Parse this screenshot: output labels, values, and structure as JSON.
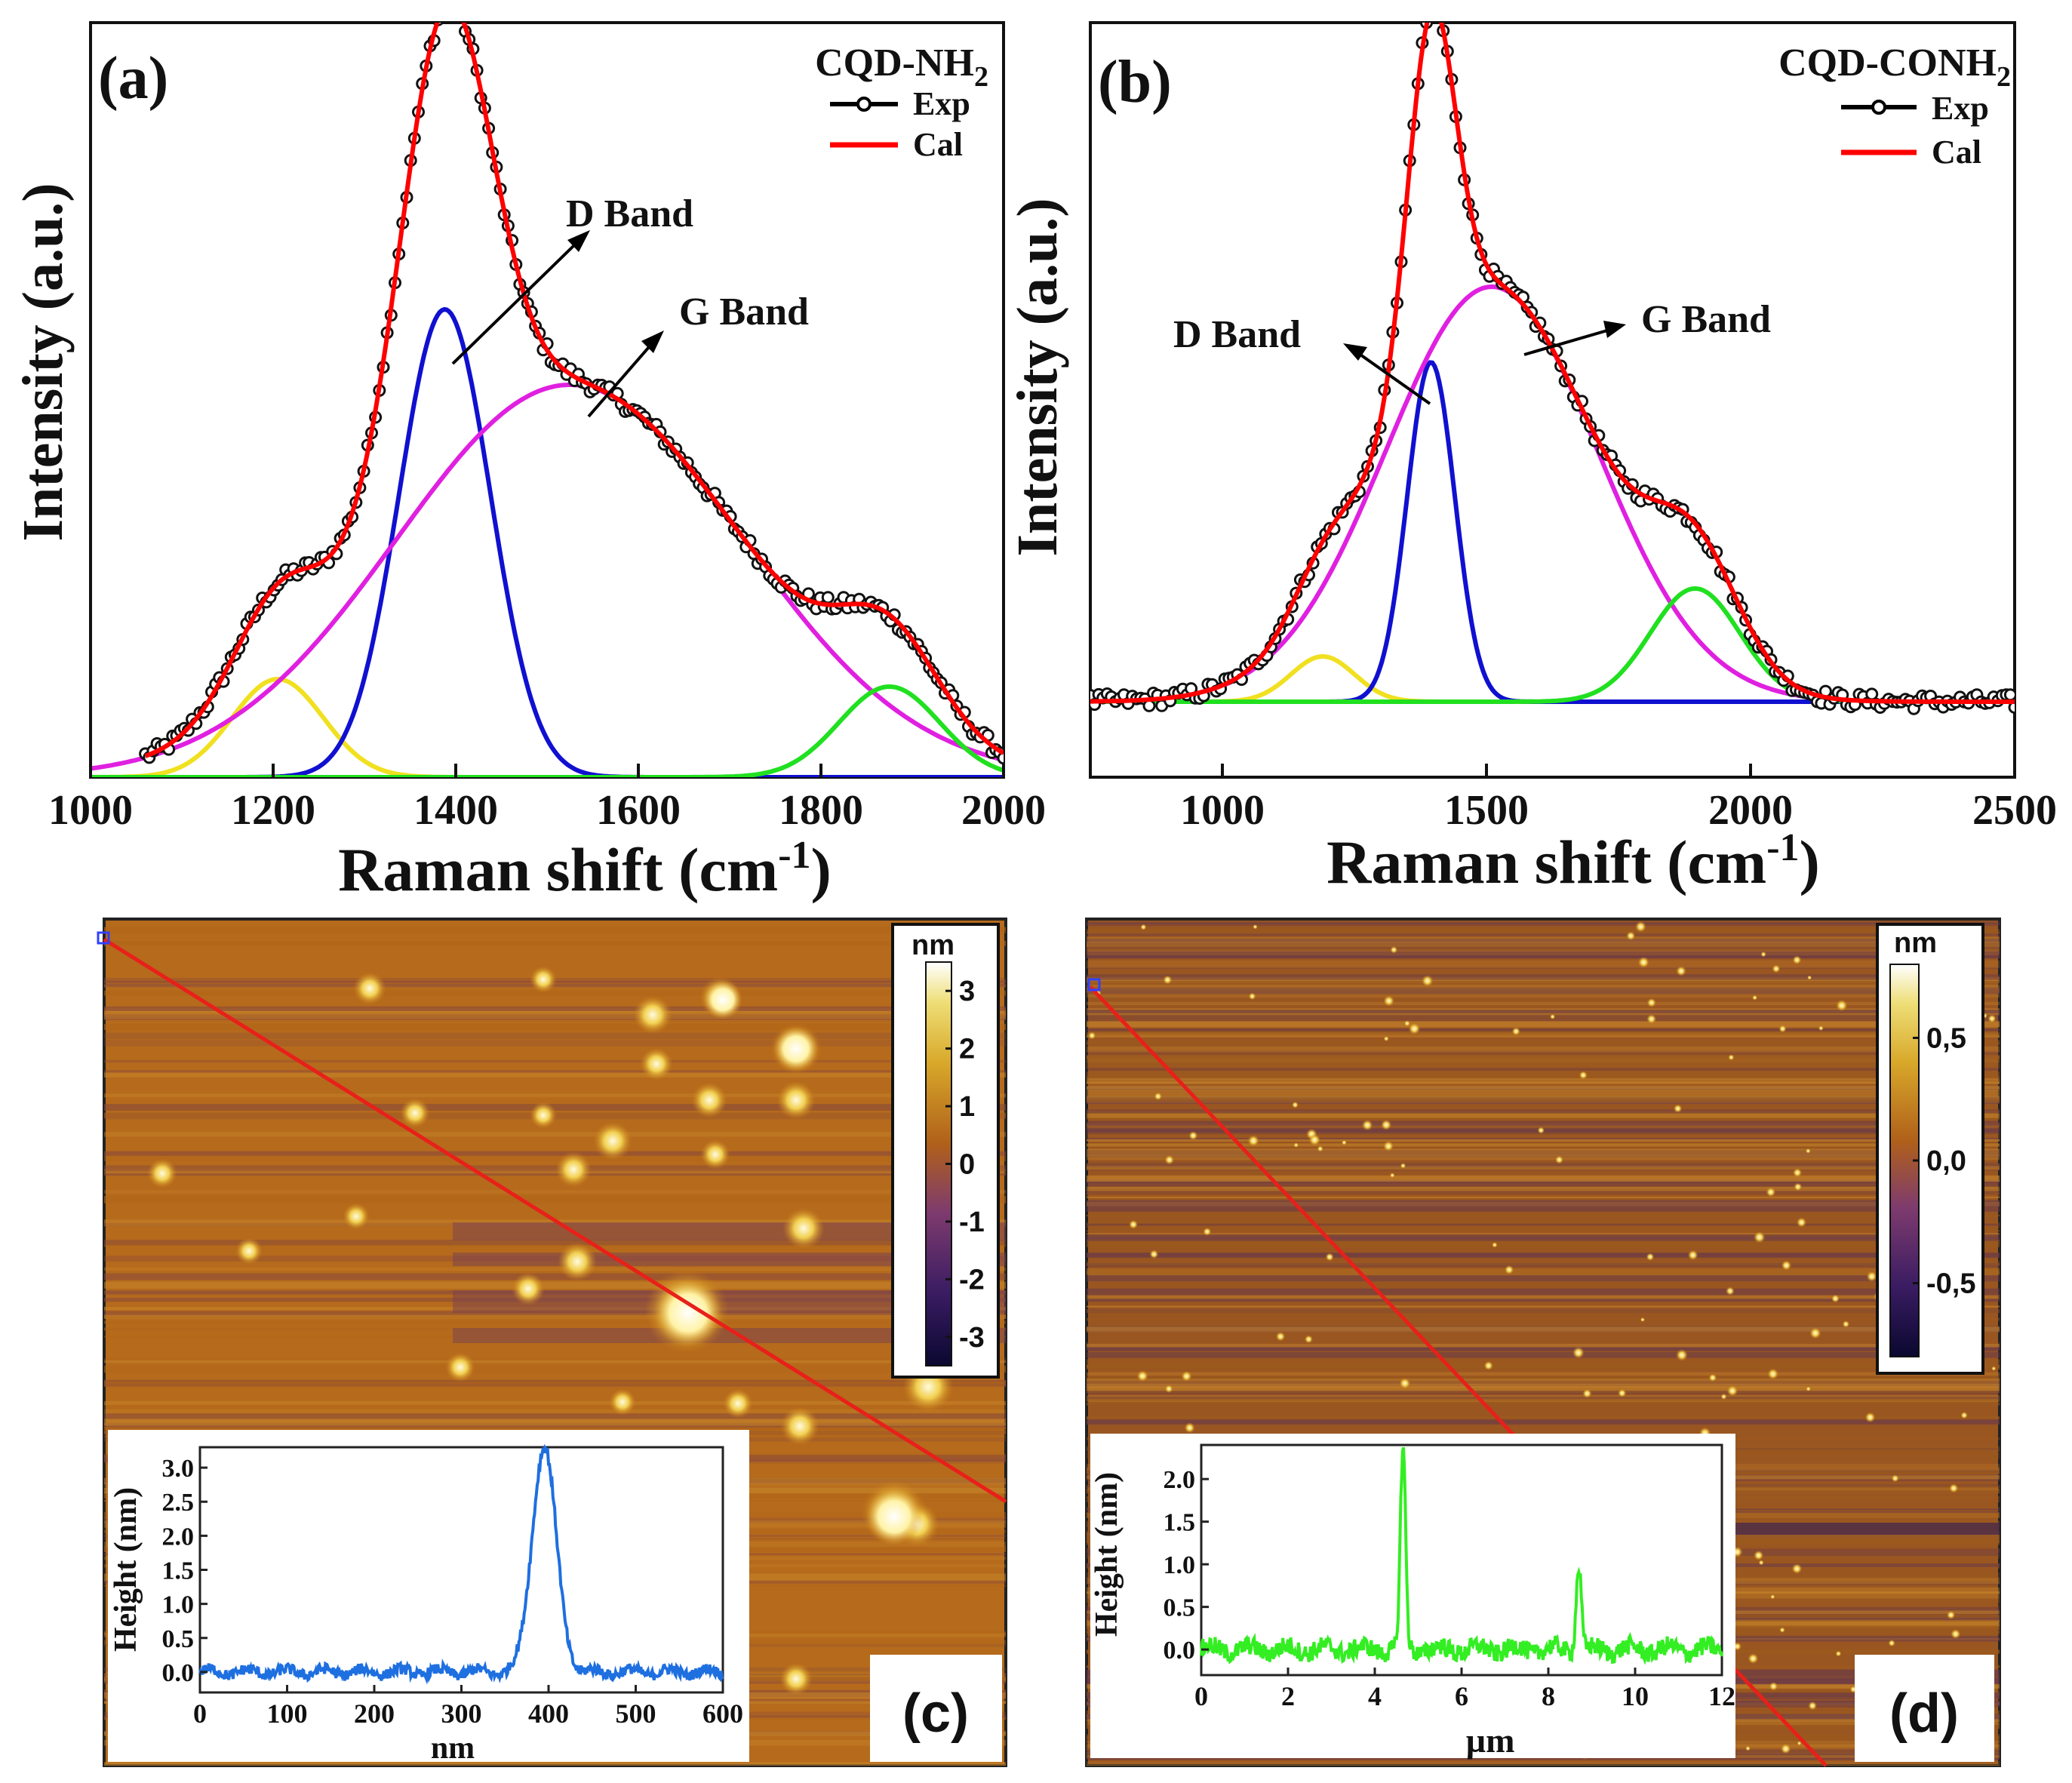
{
  "chart_data": [
    {
      "id": "a",
      "type": "line",
      "panel_label": "(a)",
      "sample": "CQD-NH",
      "sample_sub": "2",
      "legend": [
        {
          "label": "Exp",
          "color": "#000000"
        },
        {
          "label": "Cal",
          "color": "#ff0000"
        }
      ],
      "xlabel": "Raman shift (cm",
      "xlabel_sup": "-1",
      "xlabel_close": ")",
      "ylabel": "Intensity (a.u.)",
      "xlim": [
        1000,
        2000
      ],
      "ylim": [
        0,
        1.0
      ],
      "xticks": [
        1000,
        1200,
        1400,
        1600,
        1800,
        2000
      ],
      "annotations": [
        {
          "text": "D Band",
          "arrow_from": [
            1390,
            0.62
          ],
          "arrow_to": [
            1560,
            0.83
          ]
        },
        {
          "text": "G Band",
          "arrow_from": [
            1560,
            0.52
          ],
          "arrow_to": [
            1640,
            0.66
          ]
        }
      ],
      "baseline": 0.0,
      "components": [
        {
          "name": "yellow",
          "color": "#f0e020",
          "center": 1205,
          "amp": 0.13,
          "sigma": 50
        },
        {
          "name": "D Band",
          "color": "#1010d0",
          "center": 1388,
          "amp": 0.62,
          "sigma": 50
        },
        {
          "name": "G Band",
          "color": "#e020e0",
          "center": 1525,
          "amp": 0.52,
          "sigma": 190
        },
        {
          "name": "green",
          "color": "#20e020",
          "center": 1875,
          "amp": 0.12,
          "sigma": 55
        }
      ],
      "exp_x_range": [
        1060,
        2000
      ]
    },
    {
      "id": "b",
      "type": "line",
      "panel_label": "(b)",
      "sample": "CQD-CONH",
      "sample_sub": "2",
      "legend": [
        {
          "label": "Exp",
          "color": "#000000"
        },
        {
          "label": "Cal",
          "color": "#ff0000"
        }
      ],
      "xlabel": "Raman shift (cm",
      "xlabel_sup": "-1",
      "xlabel_close": ")",
      "ylabel": "Intensity (a.u.)",
      "xlim": [
        750,
        2500
      ],
      "ylim": [
        0,
        1.0
      ],
      "xticks": [
        1000,
        1500,
        2000,
        2500
      ],
      "annotations": [
        {
          "text": "D Band",
          "arrow_from": [
            1400,
            0.46
          ],
          "arrow_to": [
            1250,
            0.56
          ]
        },
        {
          "text": "G Band",
          "arrow_from": [
            1560,
            0.52
          ],
          "arrow_to": [
            1730,
            0.58
          ]
        }
      ],
      "baseline": 0.1,
      "components": [
        {
          "name": "yellow",
          "color": "#f0e020",
          "center": 1190,
          "amp": 0.06,
          "sigma": 60
        },
        {
          "name": "D Band",
          "color": "#1010d0",
          "center": 1395,
          "amp": 0.45,
          "sigma": 45
        },
        {
          "name": "G Band",
          "color": "#e020e0",
          "center": 1510,
          "amp": 0.55,
          "sigma": 200
        },
        {
          "name": "green",
          "color": "#20e020",
          "center": 1895,
          "amp": 0.15,
          "sigma": 85
        }
      ],
      "exp_x_range": [
        750,
        2500
      ]
    },
    {
      "id": "c",
      "type": "heatmap",
      "panel_label": "(c)",
      "colorbar": {
        "unit": "nm",
        "ticks": [
          "3",
          "2",
          "1",
          "0",
          "-1",
          "-2",
          "-3"
        ],
        "range": [
          -3.5,
          3.5
        ]
      },
      "inset": {
        "type": "line",
        "color": "#1e6fe0",
        "xlabel": "nm",
        "ylabel": "Height (nm)",
        "xticks": [
          "0",
          "100",
          "200",
          "300",
          "400",
          "500",
          "600"
        ],
        "yticks": [
          "0.0",
          "0.5",
          "1.0",
          "1.5",
          "2.0",
          "2.5",
          "3.0"
        ],
        "xlim": [
          0,
          600
        ],
        "ylim": [
          -0.3,
          3.3
        ],
        "peaks": [
          {
            "x": 395,
            "height": 3.3,
            "width": 14
          }
        ],
        "noise_amp": 0.08
      }
    },
    {
      "id": "d",
      "type": "heatmap",
      "panel_label": "(d)",
      "colorbar": {
        "unit": "nm",
        "ticks": [
          "0,5",
          "0,0",
          "-0,5"
        ],
        "range": [
          -0.8,
          0.8
        ]
      },
      "inset": {
        "type": "line",
        "color": "#33ee22",
        "xlabel": "µm",
        "ylabel": "Height (nm)",
        "xticks": [
          "0",
          "2",
          "4",
          "6",
          "8",
          "10",
          "12"
        ],
        "yticks": [
          "0.0",
          "0.5",
          "1.0",
          "1.5",
          "2.0"
        ],
        "xlim": [
          0,
          12
        ],
        "ylim": [
          -0.3,
          2.4
        ],
        "peaks": [
          {
            "x": 4.65,
            "height": 2.35,
            "width": 0.06
          },
          {
            "x": 8.7,
            "height": 1.0,
            "width": 0.06
          }
        ],
        "noise_amp": 0.11
      }
    }
  ]
}
